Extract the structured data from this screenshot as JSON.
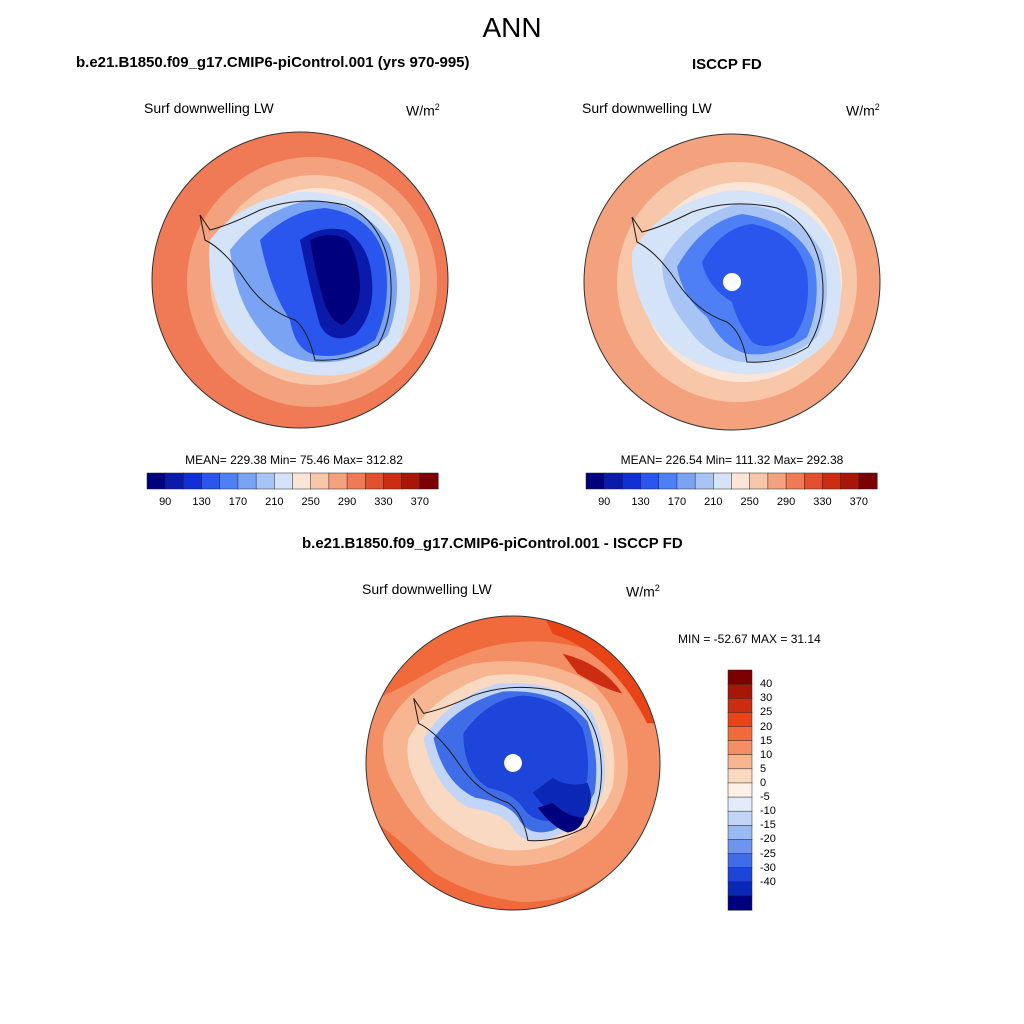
{
  "title": "ANN",
  "colors": {
    "abs_scale": [
      "#00007f",
      "#0a1bac",
      "#1030d6",
      "#2a56ee",
      "#4f7ff4",
      "#7aa3f4",
      "#a8c4f4",
      "#d4e3f7",
      "#fbe5d6",
      "#f8c6a8",
      "#f4a17e",
      "#ef7a55",
      "#e35030",
      "#cc2d12",
      "#a8160a",
      "#7c0000"
    ],
    "diff_scale": [
      "#7c0000",
      "#a8160a",
      "#cc2d12",
      "#e84418",
      "#f06a3c",
      "#f48e64",
      "#f8b592",
      "#fad9c3",
      "#fdf0e6",
      "#e3ecfb",
      "#c2d5f6",
      "#99b9f3",
      "#6d95ef",
      "#3f6de8",
      "#1e45da",
      "#0a27b5",
      "#00007f"
    ]
  },
  "panel_model": {
    "title": "b.e21.B1850.f09_g17.CMIP6-piControl.001 (yrs 970-995)",
    "variable": "Surf downwelling LW",
    "units": "W/m",
    "units_sup": "2",
    "stats": "MEAN= 229.38  Min=  75.46  Max= 312.82",
    "colorbar_ticks": [
      "90",
      "130",
      "170",
      "210",
      "250",
      "290",
      "330",
      "370"
    ]
  },
  "panel_obs": {
    "title": "ISCCP FD",
    "variable": "Surf downwelling LW",
    "units": "W/m",
    "units_sup": "2",
    "stats": "MEAN= 226.54  Min= 111.32  Max= 292.38",
    "colorbar_ticks": [
      "90",
      "130",
      "170",
      "210",
      "250",
      "290",
      "330",
      "370"
    ]
  },
  "panel_diff": {
    "title": "b.e21.B1850.f09_g17.CMIP6-piControl.001 - ISCCP FD",
    "variable": "Surf downwelling LW",
    "units": "W/m",
    "units_sup": "2",
    "stats": "MIN = -52.67 MAX =  31.14",
    "colorbar_ticks": [
      "40",
      "30",
      "25",
      "20",
      "15",
      "10",
      "5",
      "0",
      "-5",
      "-10",
      "-15",
      "-20",
      "-25",
      "-30",
      "-40"
    ]
  }
}
